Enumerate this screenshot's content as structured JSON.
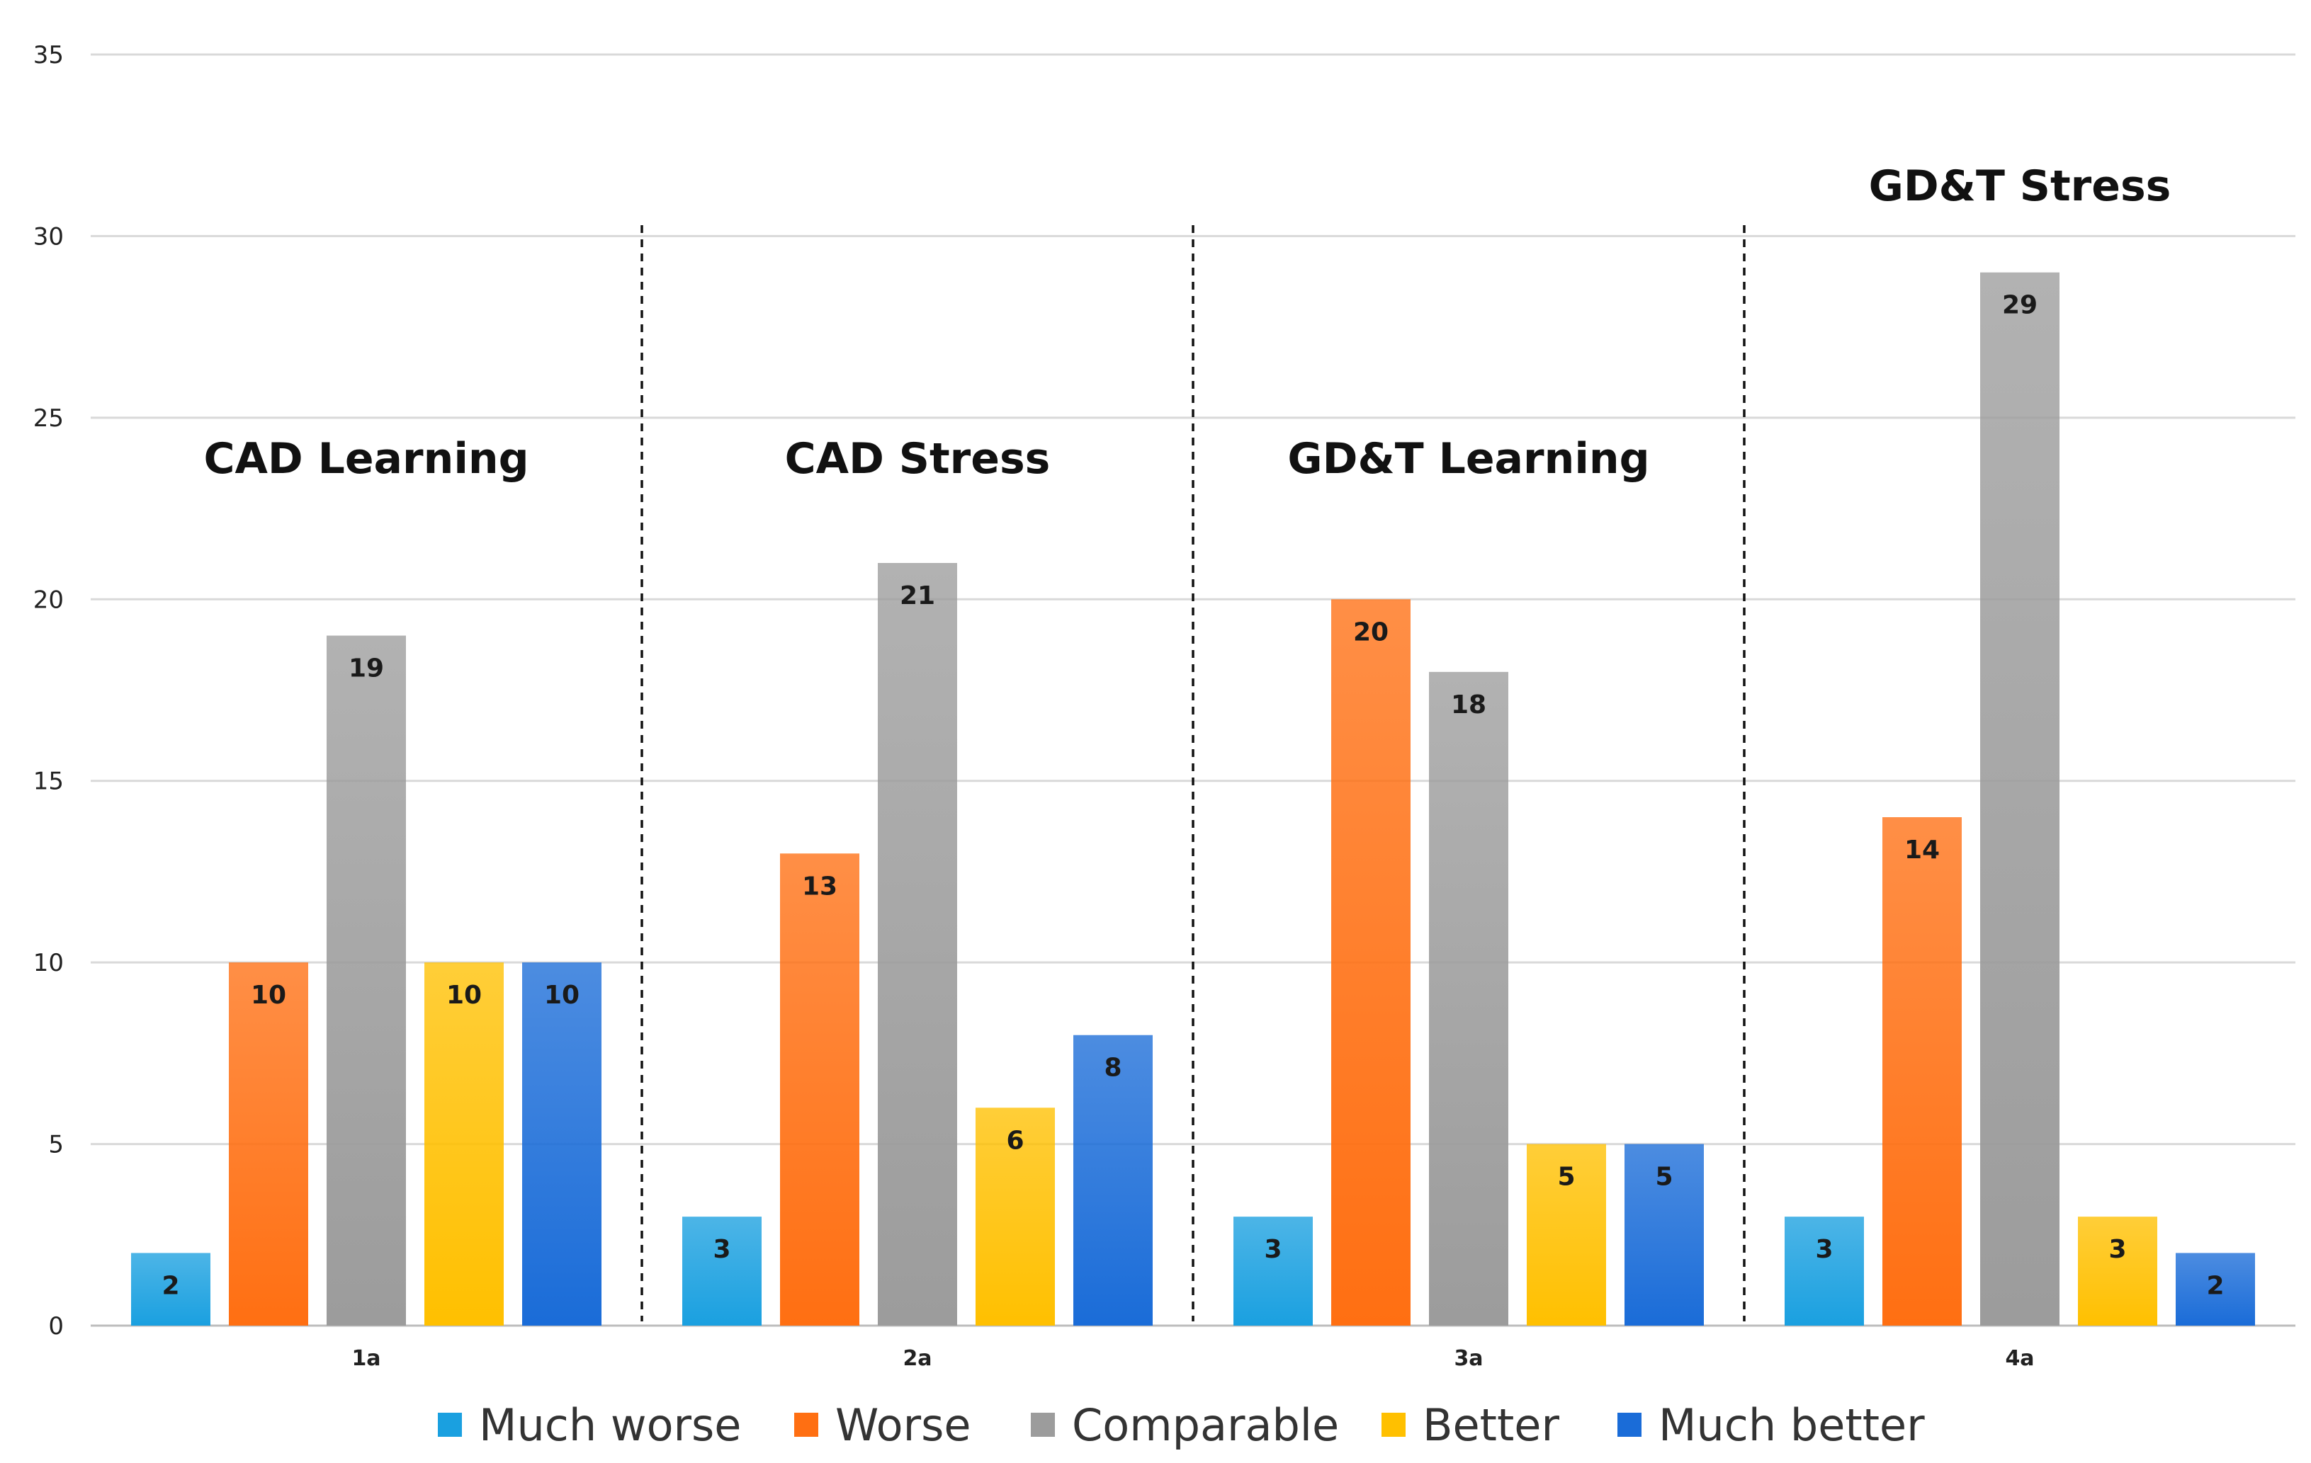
{
  "chart_data": {
    "type": "bar",
    "categories": [
      "1a",
      "2a",
      "3a",
      "4a"
    ],
    "group_titles": [
      "CAD Learning",
      "CAD Stress",
      "GD&T Learning",
      "GD&T Stress"
    ],
    "series": [
      {
        "name": "Much worse",
        "color": "#1aa0e0",
        "values": [
          2,
          3,
          3,
          3
        ]
      },
      {
        "name": "Worse",
        "color": "#ff6f12",
        "values": [
          10,
          13,
          20,
          14
        ]
      },
      {
        "name": "Comparable",
        "color": "#9c9c9c",
        "values": [
          19,
          21,
          18,
          29
        ]
      },
      {
        "name": "Better",
        "color": "#ffc000",
        "values": [
          10,
          6,
          5,
          3
        ]
      },
      {
        "name": "Much better",
        "color": "#1a6cd8",
        "values": [
          10,
          8,
          5,
          2
        ]
      }
    ],
    "yticks": [
      0,
      5,
      10,
      15,
      20,
      25,
      30,
      35
    ],
    "ylim": [
      0,
      35
    ],
    "grid": true,
    "legend": "bottom",
    "title": "",
    "xlabel": "",
    "ylabel": ""
  }
}
